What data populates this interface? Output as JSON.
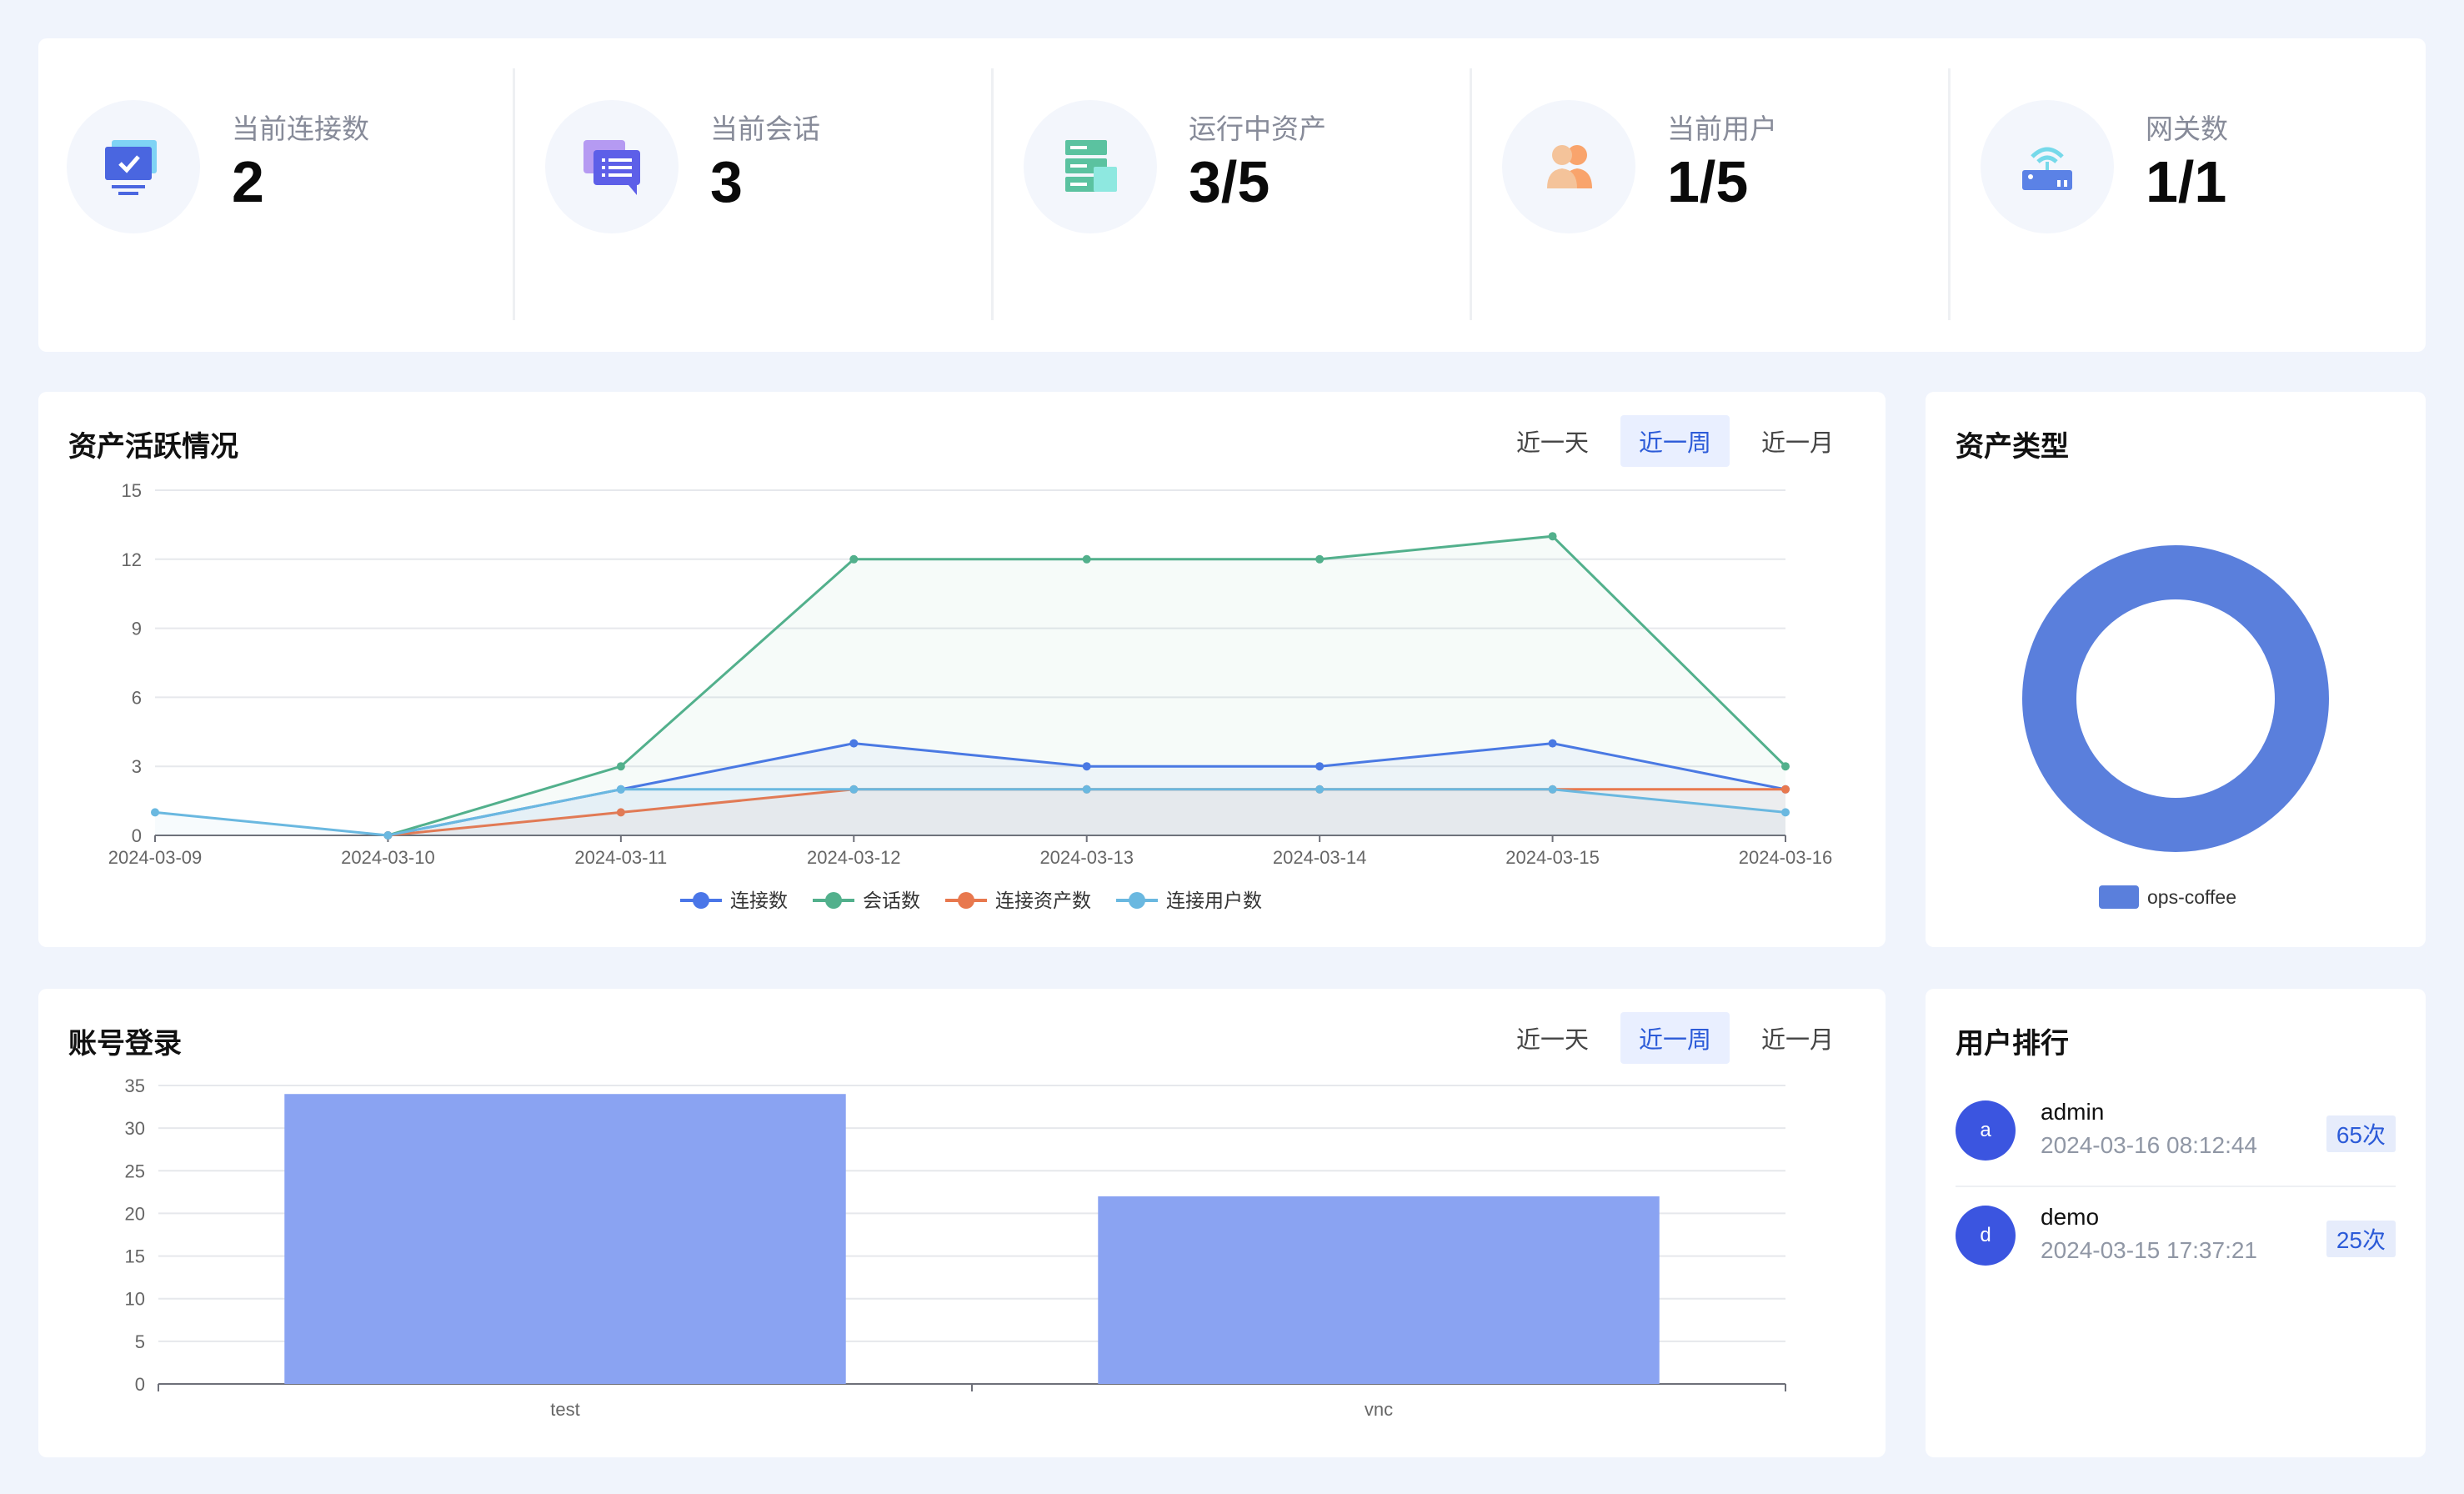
{
  "stats": [
    {
      "label": "当前连接数",
      "value": "2",
      "icon": "monitor-check-icon"
    },
    {
      "label": "当前会话",
      "value": "3",
      "icon": "chat-list-icon"
    },
    {
      "label": "运行中资产",
      "value": "3/5",
      "icon": "server-icon"
    },
    {
      "label": "当前用户",
      "value": "1/5",
      "icon": "users-icon"
    },
    {
      "label": "网关数",
      "value": "1/1",
      "icon": "router-wifi-icon"
    }
  ],
  "activity": {
    "title": "资产活跃情况",
    "tabs": [
      "近一天",
      "近一周",
      "近一月"
    ],
    "active_tab": "近一周"
  },
  "types": {
    "title": "资产类型"
  },
  "login": {
    "title": "账号登录",
    "tabs": [
      "近一天",
      "近一周",
      "近一月"
    ],
    "active_tab": "近一周"
  },
  "rank": {
    "title": "用户排行",
    "items": [
      {
        "avatar": "a",
        "name": "admin",
        "time": "2024-03-16 08:12:44",
        "count": "65次"
      },
      {
        "avatar": "d",
        "name": "demo",
        "time": "2024-03-15 17:37:21",
        "count": "25次"
      }
    ]
  },
  "colors": {
    "connections": "#4a76e8",
    "sessions": "#52b08c",
    "assets": "#e8784e",
    "users": "#6ab8e0",
    "donut": "#5a7fdc",
    "bar": "#8aa3f2"
  },
  "chart_data": [
    {
      "type": "line",
      "x": [
        "2024-03-09",
        "2024-03-10",
        "2024-03-11",
        "2024-03-12",
        "2024-03-13",
        "2024-03-14",
        "2024-03-15",
        "2024-03-16"
      ],
      "yticks": [
        "0",
        "3",
        "6",
        "9",
        "12",
        "15"
      ],
      "ylim": [
        0,
        15
      ],
      "series": [
        {
          "name": "连接数",
          "values": [
            null,
            0,
            2,
            4,
            3,
            3,
            4,
            2
          ],
          "color_key": "connections"
        },
        {
          "name": "会话数",
          "values": [
            null,
            0,
            3,
            12,
            12,
            12,
            13,
            3
          ],
          "color_key": "sessions"
        },
        {
          "name": "连接资产数",
          "values": [
            null,
            0,
            1,
            2,
            2,
            2,
            2,
            2
          ],
          "color_key": "assets"
        },
        {
          "name": "连接用户数",
          "values": [
            1,
            0,
            2,
            2,
            2,
            2,
            2,
            1
          ],
          "color_key": "users"
        }
      ],
      "legend_position": "bottom",
      "grid": true
    },
    {
      "type": "pie",
      "categories": [
        "ops-coffee"
      ],
      "values": [
        1
      ],
      "legend_position": "bottom"
    },
    {
      "type": "bar",
      "categories": [
        "test",
        "vnc"
      ],
      "values": [
        34,
        22
      ],
      "yticks": [
        "0",
        "5",
        "10",
        "15",
        "20",
        "25",
        "30",
        "35"
      ],
      "ylim": [
        0,
        35
      ],
      "grid": true
    }
  ]
}
